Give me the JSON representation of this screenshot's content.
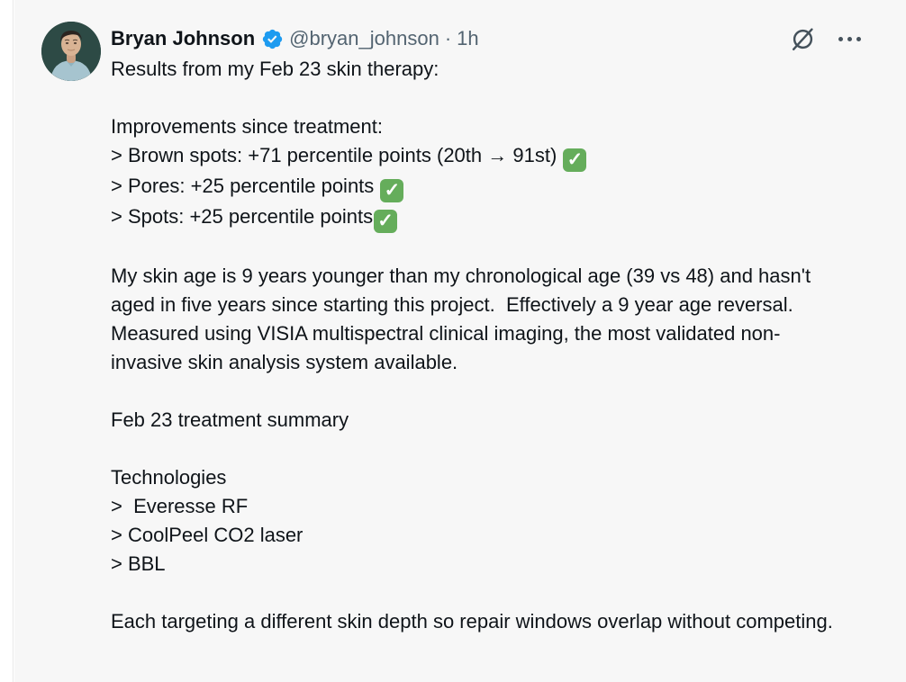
{
  "colors": {
    "background": "#f7f7f7",
    "text_primary": "#0f1419",
    "text_secondary": "#536471",
    "verified_blue": "#1d9bf0",
    "check_green": "#65ad5b"
  },
  "tweet": {
    "author": {
      "name": "Bryan Johnson",
      "handle": "@bryan_johnson",
      "separator": "·",
      "timestamp": "1h",
      "avatar_icon": "user-avatar-photo",
      "verified_icon": "verified-badge-icon"
    },
    "actions": {
      "grok_icon": "grok-icon",
      "more_icon": "more-options-icon"
    },
    "body": {
      "paragraphs": [
        "Results from my Feb 23 skin therapy:",
        "Improvements since treatment:\n> Brown spots: +71 percentile points (20th → 91st) ✅\n> Pores: +25 percentile points ✅\n> Spots: +25 percentile points✅",
        "My skin age is 9 years younger than my chronological age (39 vs 48) and hasn't aged in five years since starting this project.  Effectively a 9 year age reversal.  Measured using VISIA multispectral clinical imaging, the most validated non-invasive skin analysis system available.",
        "Feb 23 treatment summary",
        "Technologies\n>  Everesse RF\n> CoolPeel CO2 laser\n> BBL",
        "Each targeting a different skin depth so repair windows overlap without competing."
      ]
    }
  }
}
